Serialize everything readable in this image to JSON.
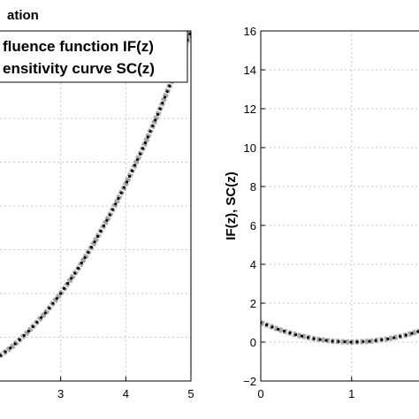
{
  "chart_data": [
    {
      "type": "line",
      "title": "ation",
      "xlabel": "",
      "ylabel": "",
      "xlim": [
        2.0,
        5.0
      ],
      "ylim": [
        0,
        16
      ],
      "xticks": [
        3,
        4,
        5
      ],
      "xtick_labels": [
        "3",
        "4",
        "5"
      ],
      "grid": true,
      "legend": {
        "placement": "top-left",
        "entries": [
          "Influence function IF(z)",
          "Sensitivity curve SC(z)"
        ],
        "visible_text": [
          "fluence function IF(z)",
          "ensitivity curve SC(z)"
        ]
      },
      "series": [
        {
          "name": "Influence function IF(z)",
          "style": "gray thick dotted",
          "color": "#a8a8a8",
          "x": [
            2.0,
            2.25,
            2.5,
            2.75,
            3.0,
            3.25,
            3.5,
            3.75,
            4.0,
            4.25,
            4.5,
            4.75,
            5.0
          ],
          "y": [
            1.0,
            1.56,
            2.25,
            3.06,
            4.0,
            5.06,
            6.25,
            7.56,
            9.0,
            10.56,
            12.25,
            14.06,
            16.0
          ]
        },
        {
          "name": "Sensitivity curve SC(z)",
          "style": "black dotted",
          "color": "#000000",
          "x": [
            2.0,
            2.25,
            2.5,
            2.75,
            3.0,
            3.25,
            3.5,
            3.75,
            4.0,
            4.25,
            4.5,
            4.75,
            5.0
          ],
          "y": [
            1.0,
            1.56,
            2.25,
            3.06,
            4.0,
            5.06,
            6.25,
            7.56,
            9.0,
            10.56,
            12.25,
            14.06,
            16.0
          ]
        }
      ]
    },
    {
      "type": "line",
      "title": "",
      "xlabel": "",
      "ylabel": "IF(z), SC(z)",
      "xlim": [
        0,
        1.8
      ],
      "ylim": [
        -2,
        16
      ],
      "xticks": [
        0,
        1
      ],
      "xtick_labels": [
        "0",
        "1"
      ],
      "yticks": [
        -2,
        0,
        2,
        4,
        6,
        8,
        10,
        12,
        14,
        16
      ],
      "ytick_labels": [
        "−2",
        "0",
        "2",
        "4",
        "6",
        "8",
        "10",
        "12",
        "14",
        "16"
      ],
      "grid": true,
      "series": [
        {
          "name": "Influence function IF(z)",
          "style": "gray thick dotted",
          "color": "#a8a8a8",
          "x": [
            0,
            0.2,
            0.4,
            0.6,
            0.8,
            1.0,
            1.2,
            1.4,
            1.6,
            1.8
          ],
          "y": [
            1.0,
            0.64,
            0.36,
            0.16,
            0.04,
            0.0,
            0.04,
            0.16,
            0.36,
            0.64
          ]
        },
        {
          "name": "Sensitivity curve SC(z)",
          "style": "black dotted",
          "color": "#000000",
          "x": [
            0,
            0.2,
            0.4,
            0.6,
            0.8,
            1.0,
            1.2,
            1.4,
            1.6,
            1.8
          ],
          "y": [
            1.0,
            0.64,
            0.36,
            0.16,
            0.04,
            0.0,
            0.04,
            0.16,
            0.36,
            0.64
          ]
        }
      ]
    }
  ]
}
